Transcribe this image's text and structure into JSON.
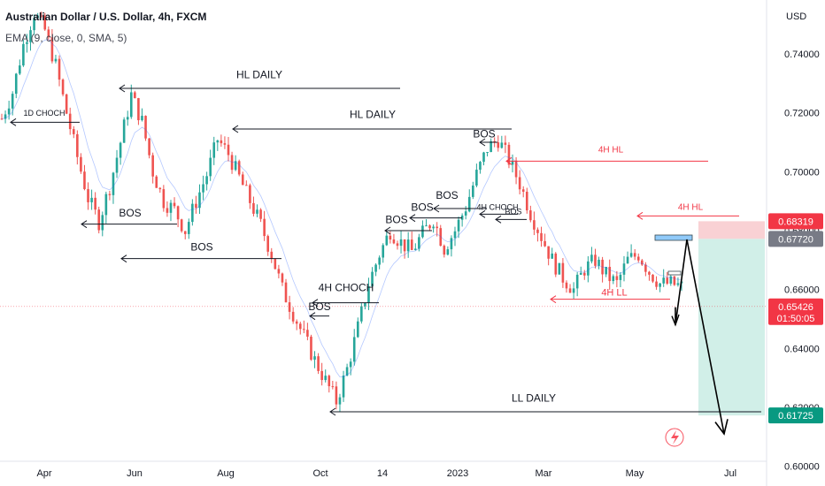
{
  "header": {
    "title": "Australian Dollar / U.S. Dollar, 4h, FXCM",
    "indicator": "EMA (9, close, 0, SMA, 5)"
  },
  "chart_data": {
    "type": "line",
    "currency_label": "USD",
    "y_ticks": [
      0.74,
      0.72,
      0.7,
      0.68,
      0.66,
      0.64,
      0.62,
      0.6
    ],
    "ylim": [
      0.5933,
      0.7583
    ],
    "x_ticks": [
      "Apr",
      "Jun",
      "Aug",
      "Oct",
      "14",
      "2023",
      "Mar",
      "May",
      "Jul"
    ],
    "series": [
      {
        "values": [
          0.718,
          0.727,
          0.743,
          0.754,
          0.748,
          0.736,
          0.72,
          0.705,
          0.691,
          0.683,
          0.695,
          0.71,
          0.726,
          0.717,
          0.7,
          0.69,
          0.687,
          0.68,
          0.69,
          0.699,
          0.711,
          0.706,
          0.698,
          0.69,
          0.682,
          0.672,
          0.66,
          0.652,
          0.644,
          0.636,
          0.629,
          0.622,
          0.633,
          0.647,
          0.662,
          0.672,
          0.68,
          0.676,
          0.673,
          0.679,
          0.684,
          0.674,
          0.68,
          0.688,
          0.699,
          0.708,
          0.711,
          0.704,
          0.696,
          0.686,
          0.678,
          0.67,
          0.664,
          0.66,
          0.667,
          0.67,
          0.665,
          0.662,
          0.67,
          0.672,
          0.666,
          0.662,
          0.662,
          0.661
        ]
      }
    ],
    "price_labels": [
      {
        "value": 0.68319,
        "text": "0.68319",
        "color": "#f23645"
      },
      {
        "value": 0.6772,
        "text": "0.67720",
        "color": "#787b86"
      },
      {
        "value": 0.65426,
        "text": "0.65426",
        "sub": "01:50:05",
        "color": "#f23645"
      },
      {
        "value": 0.61725,
        "text": "0.61725",
        "color": "#089981"
      }
    ],
    "annotations": [
      "HL DAILY",
      "HL DAILY",
      "1D CHOCH",
      "BOS",
      "BOS",
      "4H CHOCH",
      "BOS",
      "BOS",
      "BOS",
      "BOS",
      "BOS",
      "4H CHOCH",
      "BOS",
      "4H HL",
      "4H HL",
      "4H LL",
      "LL DAILY"
    ],
    "colors": {
      "up": "#26a69a",
      "down": "#ef5350",
      "ema": "#2962ff",
      "annotation_red": "#f23645",
      "profit_zone": "#d1efe8",
      "loss_zone": "#f9d1d4"
    }
  }
}
